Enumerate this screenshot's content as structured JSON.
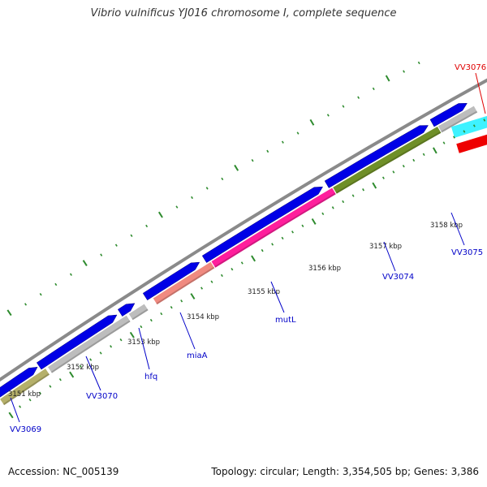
{
  "title": "Vibrio vulnificus YJ016 chromosome I, complete sequence",
  "footer": {
    "accession": "Accession: NC_005139",
    "topology": "Topology: circular; Length: 3,354,505 bp; Genes: 3,386"
  },
  "colors": {
    "backbone": "#8a8a8a",
    "forward_gene": "#0000e6",
    "grey_gene": "#bdbdbd",
    "olive_gene": "#b5b06a",
    "salmon_gene": "#f08a80",
    "magenta_gene": "#ff1e9c",
    "green_gene": "#6f8f28",
    "cyan_gene": "#3ef2ff",
    "red_gene": "#ee0000",
    "tick": "#2e8b2e",
    "label_blue": "#0000c8",
    "label_red": "#e00000"
  },
  "kbp_ticks": [
    "3151 kbp",
    "3152 kbp",
    "3153 kbp",
    "3154 kbp",
    "3155 kbp",
    "3156 kbp",
    "3157 kbp",
    "3158 kbp"
  ],
  "gene_labels": [
    {
      "name": "VV3069",
      "color": "label_blue"
    },
    {
      "name": "VV3070",
      "color": "label_blue"
    },
    {
      "name": "hfq",
      "color": "label_blue"
    },
    {
      "name": "miaA",
      "color": "label_blue"
    },
    {
      "name": "mutL",
      "color": "label_blue"
    },
    {
      "name": "VV3074",
      "color": "label_blue"
    },
    {
      "name": "VV3075",
      "color": "label_blue"
    },
    {
      "name": "VV3076",
      "color": "label_red"
    }
  ]
}
